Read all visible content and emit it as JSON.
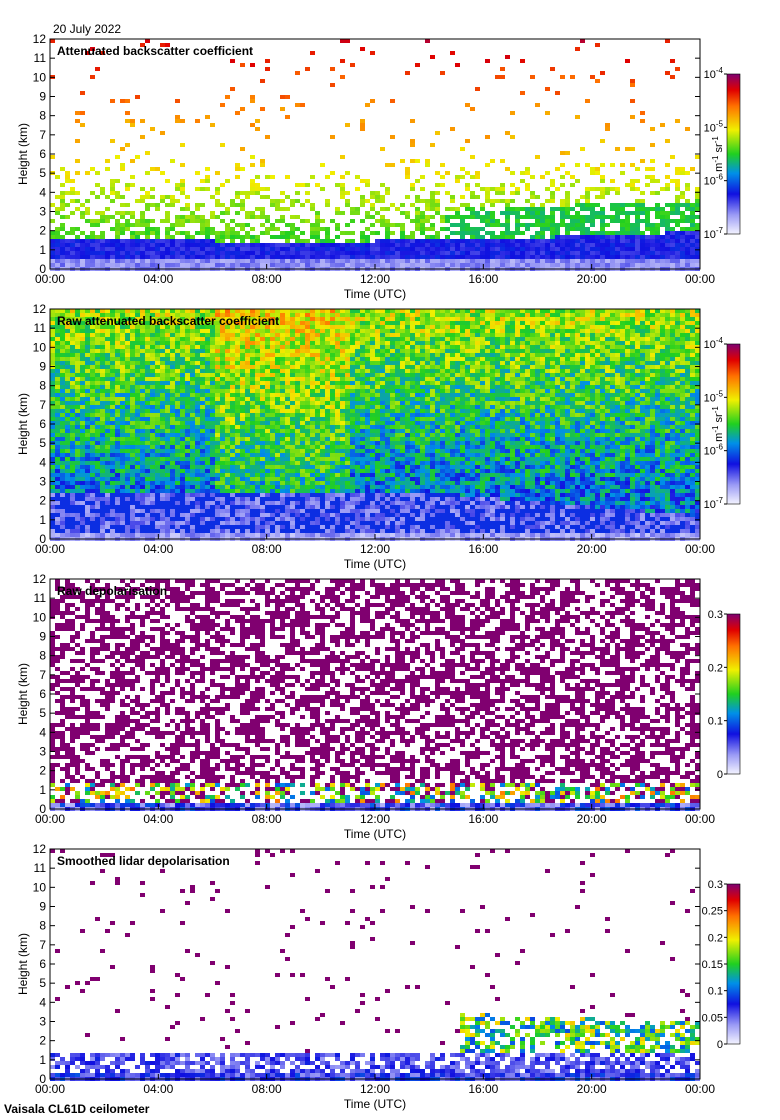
{
  "header": {
    "date_label": "20 July 2022",
    "instrument_label": "Vaisala CL61D ceilometer"
  },
  "chart_data": [
    {
      "type": "heatmap",
      "title": "Attenuated backscatter coefficient",
      "xlabel": "Time (UTC)",
      "ylabel": "Height (km)",
      "x_ticks": [
        "00:00",
        "04:00",
        "08:00",
        "12:00",
        "16:00",
        "20:00",
        "00:00"
      ],
      "y_ticks": [
        "0",
        "1",
        "2",
        "3",
        "4",
        "5",
        "6",
        "7",
        "8",
        "9",
        "10",
        "11",
        "12"
      ],
      "ylim": [
        0,
        12
      ],
      "xlim_hours": [
        0,
        24
      ],
      "colorbar": {
        "scale": "log",
        "range": [
          1e-07,
          0.0001
        ],
        "ticks": [
          {
            "base": "10",
            "exp": "-4"
          },
          {
            "base": "10",
            "exp": "-5"
          },
          {
            "base": "10",
            "exp": "-6"
          },
          {
            "base": "10",
            "exp": "-7"
          }
        ],
        "unit_parts": {
          "a": "m",
          "a_exp": "-1",
          "b": "sr",
          "b_exp": "-1"
        }
      },
      "pattern": "attenuated"
    },
    {
      "type": "heatmap",
      "title": "Raw attenuated backscatter coefficient",
      "xlabel": "Time (UTC)",
      "ylabel": "Height (km)",
      "x_ticks": [
        "00:00",
        "04:00",
        "08:00",
        "12:00",
        "16:00",
        "20:00",
        "00:00"
      ],
      "y_ticks": [
        "0",
        "1",
        "2",
        "3",
        "4",
        "5",
        "6",
        "7",
        "8",
        "9",
        "10",
        "11",
        "12"
      ],
      "ylim": [
        0,
        12
      ],
      "xlim_hours": [
        0,
        24
      ],
      "colorbar": {
        "scale": "log",
        "range": [
          1e-07,
          0.0001
        ],
        "ticks": [
          {
            "base": "10",
            "exp": "-4"
          },
          {
            "base": "10",
            "exp": "-5"
          },
          {
            "base": "10",
            "exp": "-6"
          },
          {
            "base": "10",
            "exp": "-7"
          }
        ],
        "unit_parts": {
          "a": "m",
          "a_exp": "-1",
          "b": "sr",
          "b_exp": "-1"
        }
      },
      "pattern": "raw_backscatter"
    },
    {
      "type": "heatmap",
      "title": "Raw depolarisation",
      "xlabel": "Time (UTC)",
      "ylabel": "Height (km)",
      "x_ticks": [
        "00:00",
        "04:00",
        "08:00",
        "12:00",
        "16:00",
        "20:00",
        "00:00"
      ],
      "y_ticks": [
        "0",
        "1",
        "2",
        "3",
        "4",
        "5",
        "6",
        "7",
        "8",
        "9",
        "10",
        "11",
        "12"
      ],
      "ylim": [
        0,
        12
      ],
      "xlim_hours": [
        0,
        24
      ],
      "colorbar": {
        "scale": "linear",
        "range": [
          0,
          0.3
        ],
        "ticks": [
          {
            "label": "0.3"
          },
          {
            "label": "0.2"
          },
          {
            "label": "0.1"
          },
          {
            "label": "0"
          }
        ]
      },
      "pattern": "raw_depol"
    },
    {
      "type": "heatmap",
      "title": "Smoothed lidar depolarisation",
      "xlabel": "Time (UTC)",
      "ylabel": "Height (km)",
      "x_ticks": [
        "00:00",
        "04:00",
        "08:00",
        "12:00",
        "16:00",
        "20:00",
        "00:00"
      ],
      "y_ticks": [
        "0",
        "1",
        "2",
        "3",
        "4",
        "5",
        "6",
        "7",
        "8",
        "9",
        "10",
        "11",
        "12"
      ],
      "ylim": [
        0,
        12
      ],
      "xlim_hours": [
        0,
        24
      ],
      "colorbar": {
        "scale": "linear",
        "range": [
          0,
          0.3
        ],
        "ticks": [
          {
            "label": "0.3"
          },
          {
            "label": "0.25"
          },
          {
            "label": "0.2"
          },
          {
            "label": "0.15"
          },
          {
            "label": "0.1"
          },
          {
            "label": "0.05"
          },
          {
            "label": "0"
          }
        ]
      },
      "pattern": "smoothed_depol"
    }
  ]
}
